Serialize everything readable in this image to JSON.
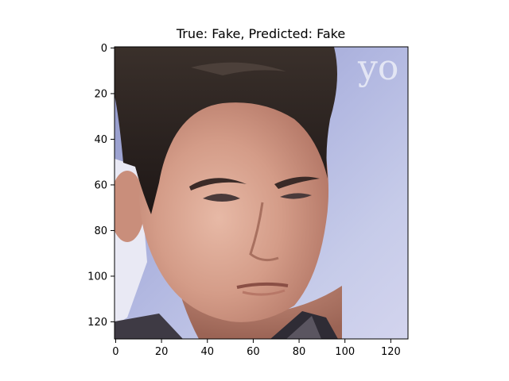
{
  "title": "True: Fake, Predicted: Fake",
  "image": {
    "description_icon": "face-photo-icon",
    "background_color": "#a9b1d8",
    "watermark_text": "yo"
  },
  "axes": {
    "x_ticks": [
      "0",
      "20",
      "40",
      "60",
      "80",
      "100",
      "120"
    ],
    "y_ticks": [
      "0",
      "20",
      "40",
      "60",
      "80",
      "100",
      "120"
    ],
    "xlim": [
      -0.5,
      127.5
    ],
    "ylim": [
      127.5,
      -0.5
    ]
  }
}
